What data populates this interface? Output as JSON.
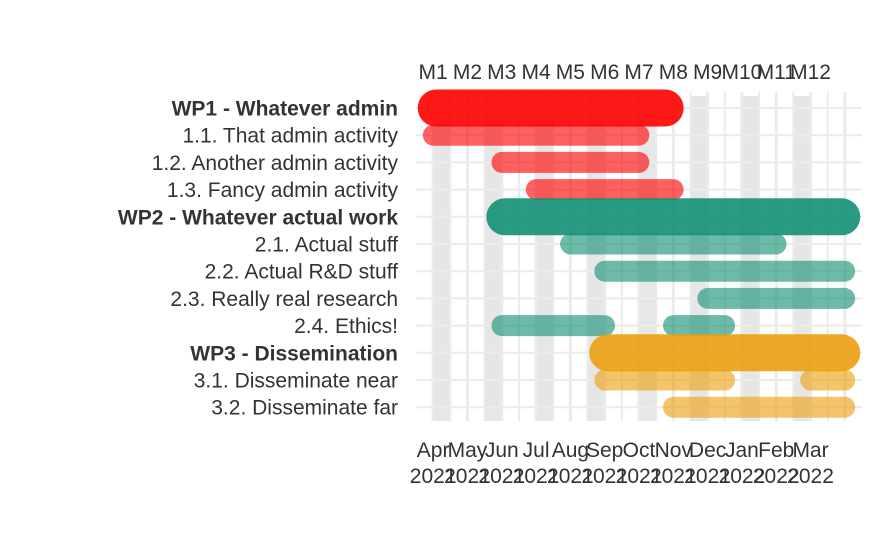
{
  "chart_data": {
    "type": "gantt",
    "x_axis_bottom": {
      "ticks": [
        {
          "label": "Apr",
          "year": "2021",
          "month_index": 1
        },
        {
          "label": "May",
          "year": "2021",
          "month_index": 2
        },
        {
          "label": "Jun",
          "year": "2021",
          "month_index": 3
        },
        {
          "label": "Jul",
          "year": "2021",
          "month_index": 4
        },
        {
          "label": "Aug",
          "year": "2021",
          "month_index": 5
        },
        {
          "label": "Sep",
          "year": "2021",
          "month_index": 6
        },
        {
          "label": "Oct",
          "year": "2021",
          "month_index": 7
        },
        {
          "label": "Nov",
          "year": "2021",
          "month_index": 8
        },
        {
          "label": "Dec",
          "year": "2021",
          "month_index": 9
        },
        {
          "label": "Jan",
          "year": "2022",
          "month_index": 10
        },
        {
          "label": "Feb",
          "year": "2022",
          "month_index": 11
        },
        {
          "label": "Mar",
          "year": "2022",
          "month_index": 12
        }
      ]
    },
    "x_axis_top": {
      "ticks": [
        "M1",
        "M2",
        "M3",
        "M4",
        "M5",
        "M6",
        "M7",
        "M8",
        "M9",
        "M10",
        "M11",
        "M12"
      ]
    },
    "xlim": [
      0.5,
      13.5
    ],
    "grid": true,
    "shaded_bands": [
      [
        1.0,
        1.5
      ],
      [
        2.5,
        3.0
      ],
      [
        4.0,
        4.5
      ],
      [
        5.5,
        6.0
      ],
      [
        7.0,
        7.5
      ],
      [
        8.5,
        9.0
      ],
      [
        10.0,
        10.5
      ],
      [
        11.5,
        12.0
      ]
    ],
    "series_colors": {
      "WP1": "#fe0000",
      "WP2": "#139075",
      "WP3": "#eba00e"
    },
    "rows": [
      {
        "label": "WP1 - Whatever admin",
        "bold": true,
        "wp": "WP1",
        "summary": true,
        "start": 0.55,
        "end": 8.3
      },
      {
        "label": "1.1. That admin activity",
        "bold": false,
        "wp": "WP1",
        "summary": false,
        "start": 0.7,
        "end": 7.3
      },
      {
        "label": "1.2. Another admin activity",
        "bold": false,
        "wp": "WP1",
        "summary": false,
        "start": 2.7,
        "end": 7.3
      },
      {
        "label": "1.3. Fancy admin activity",
        "bold": false,
        "wp": "WP1",
        "summary": false,
        "start": 3.7,
        "end": 8.3
      },
      {
        "label": "WP2 - Whatever actual work",
        "bold": true,
        "wp": "WP2",
        "summary": true,
        "start": 2.55,
        "end": 13.45
      },
      {
        "label": "2.1. Actual stuff",
        "bold": false,
        "wp": "WP2",
        "summary": false,
        "start": 4.7,
        "end": 11.3
      },
      {
        "label": "2.2. Actual R&D stuff",
        "bold": false,
        "wp": "WP2",
        "summary": false,
        "start": 5.7,
        "end": 13.3
      },
      {
        "label": "2.3. Really real research",
        "bold": false,
        "wp": "WP2",
        "summary": false,
        "start": 8.7,
        "end": 13.3
      },
      {
        "label": "2.4. Ethics!",
        "bold": false,
        "wp": "WP2",
        "summary": false,
        "start": 2.7,
        "end": 6.3
      },
      {
        "label": "2.4. Ethics! (part 2)",
        "hidden_label": true,
        "row_of": 8,
        "wp": "WP2",
        "summary": false,
        "start": 7.7,
        "end": 9.8
      },
      {
        "label": "WP3 - Dissemination",
        "bold": true,
        "wp": "WP3",
        "summary": true,
        "start": 5.55,
        "end": 13.45
      },
      {
        "label": "3.1. Disseminate near",
        "bold": false,
        "wp": "WP3",
        "summary": false,
        "start": 5.7,
        "end": 9.8
      },
      {
        "label": "3.1. Disseminate near (part 2)",
        "hidden_label": true,
        "row_of": 11,
        "wp": "WP3",
        "summary": false,
        "start": 11.7,
        "end": 13.3
      },
      {
        "label": "3.2. Disseminate far",
        "bold": false,
        "wp": "WP3",
        "summary": false,
        "start": 7.7,
        "end": 13.3
      }
    ]
  }
}
